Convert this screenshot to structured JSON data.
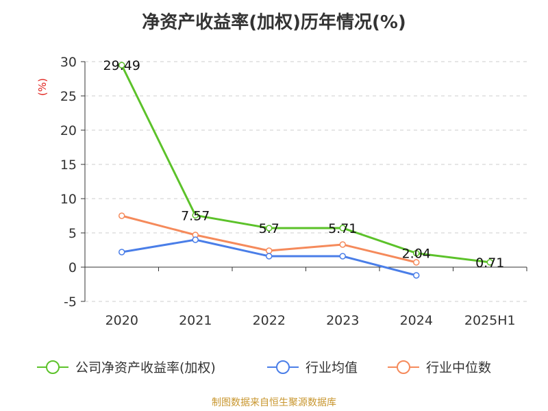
{
  "title": "净资产收益率(加权)历年情况(%)",
  "source": "制图数据来自恒生聚源数据库",
  "ylabel": "(%)",
  "colors": {
    "company": "#5cc22a",
    "industry_avg": "#4a7ee8",
    "industry_median": "#f58a5b",
    "axis": "#333333",
    "grid": "#cccccc",
    "ylabel": "#e0201b"
  },
  "legend_icon": "circle-line-marker-icon",
  "chart_data": {
    "type": "line",
    "categories": [
      "2020",
      "2021",
      "2022",
      "2023",
      "2024",
      "2025H1"
    ],
    "ylim": [
      -5,
      30
    ],
    "yticks": [
      -5,
      0,
      5,
      10,
      15,
      20,
      25,
      30
    ],
    "grid": true,
    "legend_position": "bottom",
    "series": [
      {
        "name": "公司净资产收益率(加权)",
        "values": [
          29.49,
          7.57,
          5.7,
          5.71,
          2.04,
          0.71
        ],
        "labels": [
          "29.49",
          "7.57",
          "5.7",
          "5.71",
          "2.04",
          "0.71"
        ]
      },
      {
        "name": "行业均值",
        "values": [
          2.2,
          4.0,
          1.6,
          1.6,
          -1.2,
          null
        ]
      },
      {
        "name": "行业中位数",
        "values": [
          7.5,
          4.7,
          2.4,
          3.3,
          0.7,
          null
        ]
      }
    ]
  }
}
